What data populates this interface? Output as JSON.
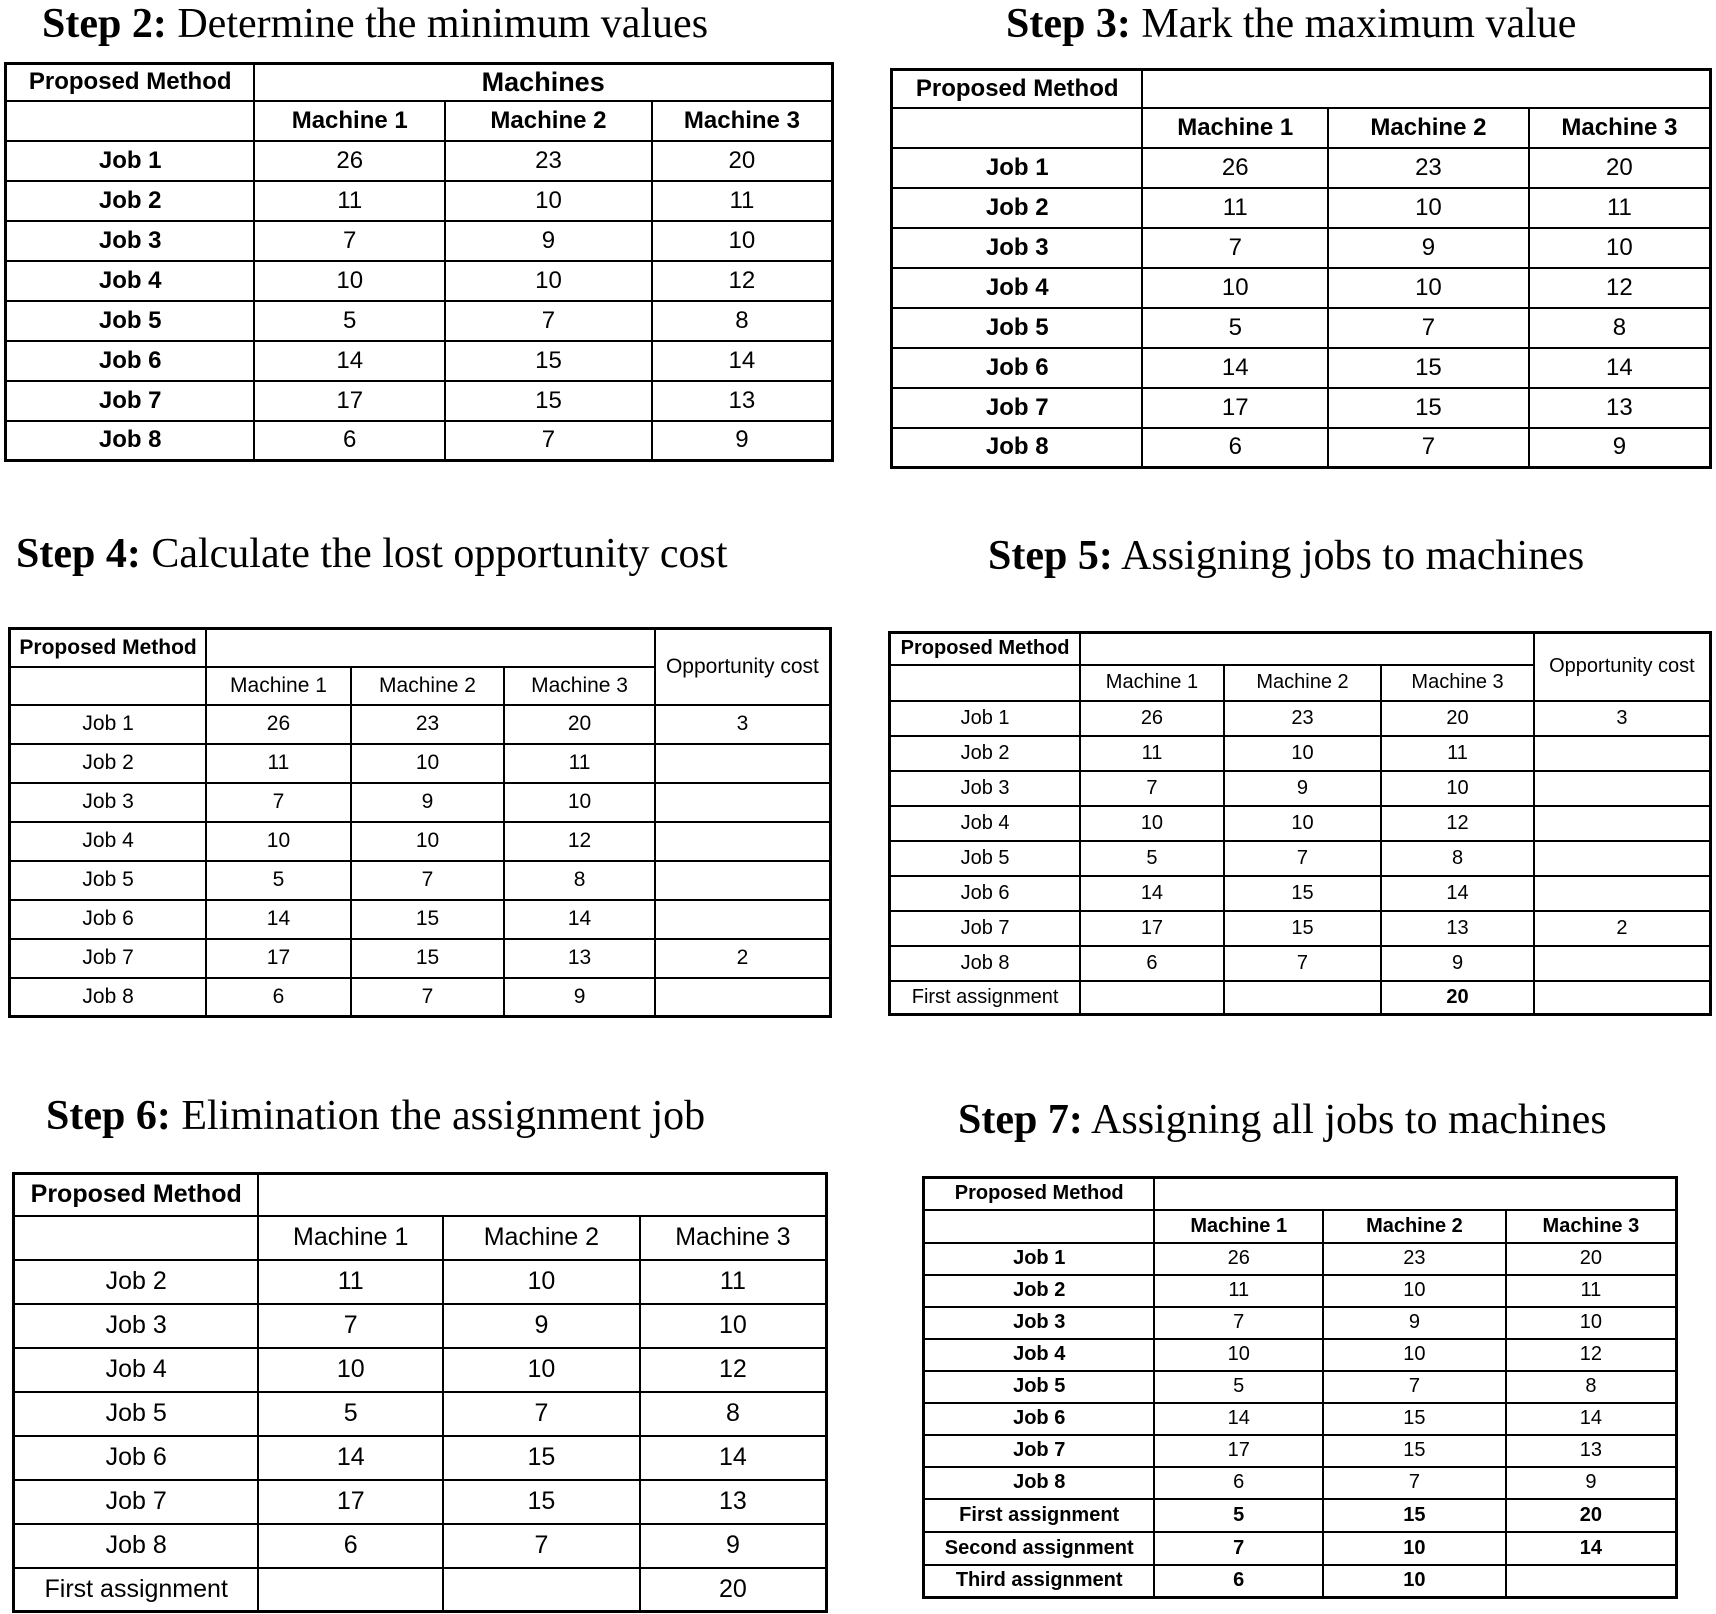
{
  "panels": [
    {
      "title_bold": "Step 2:",
      "title_rest": "Determine the minimum values",
      "header_label": "Proposed Method",
      "machines_header": "Machines",
      "machines": [
        "Machine 1",
        "Machine 2",
        "Machine 3"
      ],
      "rows": [
        {
          "job": "Job 1",
          "values": [
            "26",
            "23",
            "20"
          ]
        },
        {
          "job": "Job 2",
          "values": [
            "11",
            "10",
            "11"
          ]
        },
        {
          "job": "Job 3",
          "values": [
            "7",
            "9",
            "10"
          ]
        },
        {
          "job": "Job 4",
          "values": [
            "10",
            "10",
            "12"
          ]
        },
        {
          "job": "Job 5",
          "values": [
            "5",
            "7",
            "8"
          ]
        },
        {
          "job": "Job 6",
          "values": [
            "14",
            "15",
            "14"
          ]
        },
        {
          "job": "Job 7",
          "values": [
            "17",
            "15",
            "13"
          ]
        },
        {
          "job": "Job 8",
          "values": [
            "6",
            "7",
            "9"
          ]
        }
      ],
      "highlight_colors": {
        "yellow": "#fcfc04"
      }
    },
    {
      "title_bold": "Step 3:",
      "title_rest": "Mark the maximum value",
      "header_label": "Proposed Method",
      "machines_header": "",
      "machines": [
        "Machine 1",
        "Machine 2",
        "Machine 3"
      ],
      "rows": [
        {
          "job": "Job 1",
          "values": [
            "26",
            "23",
            "20"
          ]
        },
        {
          "job": "Job 2",
          "values": [
            "11",
            "10",
            "11"
          ]
        },
        {
          "job": "Job 3",
          "values": [
            "7",
            "9",
            "10"
          ]
        },
        {
          "job": "Job 4",
          "values": [
            "10",
            "10",
            "12"
          ]
        },
        {
          "job": "Job 5",
          "values": [
            "5",
            "7",
            "8"
          ]
        },
        {
          "job": "Job 6",
          "values": [
            "14",
            "15",
            "14"
          ]
        },
        {
          "job": "Job 7",
          "values": [
            "17",
            "15",
            "13"
          ]
        },
        {
          "job": "Job 8",
          "values": [
            "6",
            "7",
            "9"
          ]
        }
      ],
      "highlight_colors": {
        "yellow": "#fcfc04",
        "red": "#f8787c"
      }
    },
    {
      "title_bold": "Step 4:",
      "title_rest": "Calculate the lost opportunity cost",
      "header_label": "Proposed Method",
      "machines_header": "",
      "opportunity_header": "Opportunity cost",
      "machines": [
        "Machine 1",
        "Machine 2",
        "Machine 3"
      ],
      "rows": [
        {
          "job": "Job 1",
          "values": [
            "26",
            "23",
            "20"
          ],
          "opportunity": "3"
        },
        {
          "job": "Job 2",
          "values": [
            "11",
            "10",
            "11"
          ],
          "opportunity": ""
        },
        {
          "job": "Job 3",
          "values": [
            "7",
            "9",
            "10"
          ],
          "opportunity": ""
        },
        {
          "job": "Job 4",
          "values": [
            "10",
            "10",
            "12"
          ],
          "opportunity": ""
        },
        {
          "job": "Job 5",
          "values": [
            "5",
            "7",
            "8"
          ],
          "opportunity": ""
        },
        {
          "job": "Job 6",
          "values": [
            "14",
            "15",
            "14"
          ],
          "opportunity": ""
        },
        {
          "job": "Job 7",
          "values": [
            "17",
            "15",
            "13"
          ],
          "opportunity": "2"
        },
        {
          "job": "Job 8",
          "values": [
            "6",
            "7",
            "9"
          ],
          "opportunity": ""
        }
      ],
      "highlight_colors": {
        "yellow": "#fcfc04",
        "red": "#f8787c",
        "opportunity": "#cdcdfd"
      }
    },
    {
      "title_bold": "Step 5:",
      "title_rest": "Assigning jobs to machines",
      "header_label": "Proposed Method",
      "machines_header": "",
      "opportunity_header": "Opportunity cost",
      "machines": [
        "Machine 1",
        "Machine 2",
        "Machine 3"
      ],
      "rows": [
        {
          "job": "Job 1",
          "values": [
            "26",
            "23",
            "20"
          ],
          "opportunity": "3"
        },
        {
          "job": "Job 2",
          "values": [
            "11",
            "10",
            "11"
          ],
          "opportunity": ""
        },
        {
          "job": "Job 3",
          "values": [
            "7",
            "9",
            "10"
          ],
          "opportunity": ""
        },
        {
          "job": "Job 4",
          "values": [
            "10",
            "10",
            "12"
          ],
          "opportunity": ""
        },
        {
          "job": "Job 5",
          "values": [
            "5",
            "7",
            "8"
          ],
          "opportunity": ""
        },
        {
          "job": "Job 6",
          "values": [
            "14",
            "15",
            "14"
          ],
          "opportunity": ""
        },
        {
          "job": "Job 7",
          "values": [
            "17",
            "15",
            "13"
          ],
          "opportunity": "2"
        },
        {
          "job": "Job 8",
          "values": [
            "6",
            "7",
            "9"
          ],
          "opportunity": ""
        }
      ],
      "assignments": [
        {
          "label": "First assignment",
          "values": [
            "",
            "",
            "20"
          ]
        }
      ],
      "highlight_colors": {
        "yellow": "#fcfc04",
        "green": "#c8f4b4",
        "pink": "#fccccc"
      }
    },
    {
      "title_bold": "Step 6:",
      "title_rest": "Elimination the assignment job",
      "header_label": "Proposed Method",
      "machines_header": "",
      "machines": [
        "Machine 1",
        "Machine 2",
        "Machine 3"
      ],
      "rows": [
        {
          "job": "Job 2",
          "values": [
            "11",
            "10",
            "11"
          ]
        },
        {
          "job": "Job 3",
          "values": [
            "7",
            "9",
            "10"
          ]
        },
        {
          "job": "Job 4",
          "values": [
            "10",
            "10",
            "12"
          ]
        },
        {
          "job": "Job 5",
          "values": [
            "5",
            "7",
            "8"
          ]
        },
        {
          "job": "Job 6",
          "values": [
            "14",
            "15",
            "14"
          ]
        },
        {
          "job": "Job 7",
          "values": [
            "17",
            "15",
            "13"
          ]
        },
        {
          "job": "Job 8",
          "values": [
            "6",
            "7",
            "9"
          ]
        }
      ],
      "assignments": [
        {
          "label": "First assignment",
          "values": [
            "",
            "",
            "20"
          ]
        }
      ],
      "highlight_colors": {
        "yellow": "#fcfc04",
        "pink": "#fccccc"
      }
    },
    {
      "title_bold": "Step 7:",
      "title_rest": "Assigning all jobs to machines",
      "header_label": "Proposed Method",
      "machines_header": "",
      "machines": [
        "Machine 1",
        "Machine 2",
        "Machine 3"
      ],
      "rows": [
        {
          "job": "Job 1",
          "values": [
            "26",
            "23",
            "20"
          ]
        },
        {
          "job": "Job 2",
          "values": [
            "11",
            "10",
            "11"
          ]
        },
        {
          "job": "Job 3",
          "values": [
            "7",
            "9",
            "10"
          ]
        },
        {
          "job": "Job 4",
          "values": [
            "10",
            "10",
            "12"
          ]
        },
        {
          "job": "Job 5",
          "values": [
            "5",
            "7",
            "8"
          ]
        },
        {
          "job": "Job 6",
          "values": [
            "14",
            "15",
            "14"
          ]
        },
        {
          "job": "Job 7",
          "values": [
            "17",
            "15",
            "13"
          ]
        },
        {
          "job": "Job 8",
          "values": [
            "6",
            "7",
            "9"
          ]
        }
      ],
      "assignments": [
        {
          "label": "First assignment",
          "values": [
            "5",
            "15",
            "20"
          ]
        },
        {
          "label": "Second assignment",
          "values": [
            "7",
            "10",
            "14"
          ]
        },
        {
          "label": "Third assignment",
          "values": [
            "6",
            "10",
            ""
          ]
        }
      ],
      "highlight_colors": {
        "yellow": "#fcfc04",
        "pink": "#fccccc",
        "green": "#c8f0c8",
        "blue": "#c8e6f8"
      }
    }
  ]
}
